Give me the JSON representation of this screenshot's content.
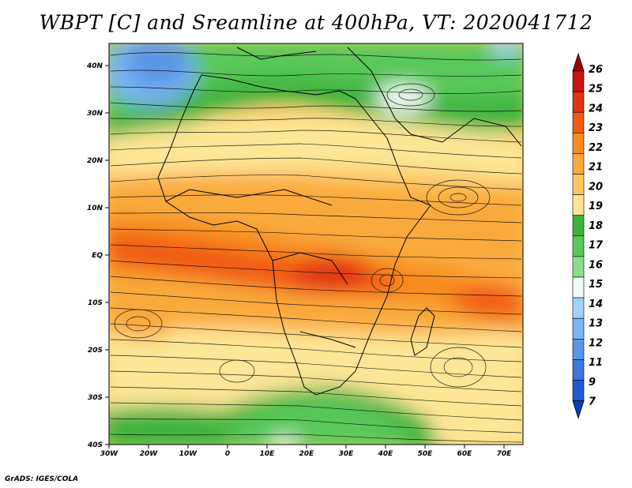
{
  "title": "WBPT [C] and Sreamline at 400hPa, VT: 2020041712",
  "credit": "GrADS: IGES/COLA",
  "lat_ticks": [
    "40N",
    "30N",
    "20N",
    "10N",
    "EQ",
    "10S",
    "20S",
    "30S",
    "40S"
  ],
  "lon_ticks": [
    "30W",
    "20W",
    "10W",
    "0",
    "10E",
    "20E",
    "30E",
    "40E",
    "50E",
    "60E",
    "70E"
  ],
  "colorbar": {
    "labels": [
      "26",
      "25",
      "24",
      "23",
      "22",
      "21",
      "20",
      "19",
      "18",
      "17",
      "16",
      "15",
      "14",
      "13",
      "12",
      "11",
      "9",
      "7"
    ],
    "colors": [
      "#a50000",
      "#c81414",
      "#e13214",
      "#f05a14",
      "#f78c1e",
      "#faaa3c",
      "#fcc864",
      "#fde696",
      "#3cb43c",
      "#5ac85a",
      "#8cdc8c",
      "#eefaf5",
      "#a0d2fa",
      "#78b4f0",
      "#5a96e6",
      "#3c78dc",
      "#1e5ad2",
      "#0a3cbe"
    ]
  }
}
